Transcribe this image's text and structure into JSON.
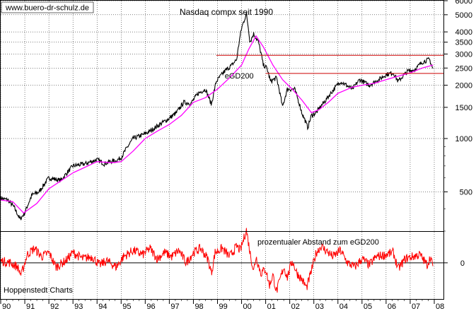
{
  "chart_data": [
    {
      "type": "line",
      "title": "Nasdaq compx seit 1990",
      "watermark": "www.buero-dr-schulz.de",
      "scale": "log",
      "ylim": [
        300,
        6000
      ],
      "y_ticks": [
        500,
        1000,
        1500,
        2000,
        2500,
        3000,
        3500,
        4000,
        5000,
        6000
      ],
      "y_tick_labels": [
        "500",
        "1000",
        "1500",
        "2000",
        "2500",
        "3000",
        "3500",
        "4000",
        "5000",
        "6000"
      ],
      "series": [
        {
          "name": "Nasdaq compx",
          "color": "#000000",
          "x": [
            1990.0,
            1990.3,
            1990.55,
            1990.8,
            1991.0,
            1991.3,
            1991.6,
            1992.0,
            1992.5,
            1993.0,
            1993.5,
            1994.0,
            1994.3,
            1994.5,
            1994.8,
            1995.0,
            1995.5,
            1995.9,
            1996.2,
            1996.6,
            1997.0,
            1997.3,
            1997.6,
            1997.9,
            1998.2,
            1998.5,
            1998.75,
            1998.95,
            1999.3,
            1999.6,
            1999.8,
            2000.0,
            2000.2,
            2000.35,
            2000.5,
            2000.7,
            2000.9,
            2001.05,
            2001.2,
            2001.45,
            2001.7,
            2001.9,
            2002.2,
            2002.5,
            2002.75,
            2002.9,
            2003.1,
            2003.5,
            2003.9,
            2004.1,
            2004.6,
            2004.9,
            2005.3,
            2005.7,
            2006.0,
            2006.3,
            2006.5,
            2006.9,
            2007.2,
            2007.5,
            2007.8,
            2007.95
          ],
          "values": [
            460,
            450,
            410,
            350,
            380,
            480,
            500,
            600,
            580,
            700,
            720,
            760,
            720,
            740,
            750,
            780,
            1000,
            1050,
            1100,
            1200,
            1300,
            1400,
            1600,
            1580,
            1800,
            1900,
            1550,
            2100,
            2400,
            2600,
            2800,
            4200,
            5050,
            3500,
            3900,
            3500,
            2600,
            2500,
            2100,
            2200,
            1500,
            1900,
            1900,
            1400,
            1150,
            1350,
            1400,
            1650,
            1950,
            2100,
            1900,
            2150,
            2000,
            2150,
            2300,
            2350,
            2100,
            2400,
            2450,
            2700,
            2800,
            2450
          ]
        },
        {
          "name": "eGD200",
          "color": "#ff00ff",
          "x": [
            1990.0,
            1990.5,
            1990.95,
            1991.5,
            1992.0,
            1993.0,
            1994.0,
            1994.6,
            1995.0,
            1995.5,
            1996.0,
            1996.5,
            1997.0,
            1997.5,
            1998.0,
            1998.5,
            1999.0,
            1999.5,
            2000.0,
            2000.3,
            2000.6,
            2000.9,
            2001.3,
            2001.7,
            2002.1,
            2002.5,
            2002.9,
            2003.2,
            2003.6,
            2004.0,
            2004.6,
            2005.0,
            2005.5,
            2006.0,
            2006.5,
            2007.0,
            2007.5,
            2007.95
          ],
          "values": [
            450,
            440,
            380,
            430,
            520,
            640,
            740,
            730,
            740,
            850,
            1000,
            1100,
            1200,
            1350,
            1600,
            1700,
            1900,
            2200,
            2600,
            3200,
            3800,
            3300,
            2600,
            2150,
            1900,
            1650,
            1400,
            1450,
            1600,
            1800,
            1950,
            2000,
            2050,
            2150,
            2250,
            2350,
            2500,
            2600
          ]
        }
      ],
      "annotations": [
        {
          "text": "eGD200",
          "color": "#ff00ff",
          "x": 1999.3,
          "y": 2180
        }
      ],
      "reference_lines": [
        {
          "y": 2950,
          "x_start": 1998.95,
          "color": "#cc0000"
        },
        {
          "y": 2330,
          "x_start": 2001.0,
          "color": "#cc0000"
        }
      ]
    },
    {
      "type": "line",
      "title": "prozentualer Abstand zum eGD200",
      "ylim": [
        -35,
        30
      ],
      "y_ticks": [
        0
      ],
      "y_tick_labels": [
        "0"
      ],
      "series": [
        {
          "name": "prozentualer Abstand zum eGD200",
          "color": "#ff0000",
          "x": [
            1990.0,
            1990.4,
            1990.7,
            1990.85,
            1991.1,
            1991.4,
            1991.7,
            1992.0,
            1992.3,
            1992.7,
            1993.0,
            1993.4,
            1993.8,
            1994.1,
            1994.4,
            1994.8,
            1995.1,
            1995.5,
            1995.9,
            1996.2,
            1996.5,
            1996.8,
            1997.1,
            1997.4,
            1997.7,
            1998.0,
            1998.3,
            1998.6,
            1998.75,
            1998.9,
            1999.2,
            1999.5,
            1999.8,
            1999.95,
            2000.1,
            2000.2,
            2000.35,
            2000.5,
            2000.6,
            2000.8,
            2001.0,
            2001.15,
            2001.3,
            2001.45,
            2001.6,
            2001.75,
            2001.9,
            2002.1,
            2002.3,
            2002.5,
            2002.7,
            2002.85,
            2003.1,
            2003.3,
            2003.5,
            2003.8,
            2004.1,
            2004.4,
            2004.7,
            2005.0,
            2005.3,
            2005.6,
            2006.0,
            2006.3,
            2006.5,
            2006.8,
            2007.1,
            2007.4,
            2007.7,
            2007.85,
            2007.95
          ],
          "values": [
            2,
            0,
            -4,
            -12,
            8,
            14,
            6,
            10,
            -4,
            2,
            10,
            4,
            6,
            -2,
            2,
            -4,
            6,
            12,
            8,
            14,
            4,
            10,
            6,
            12,
            0,
            10,
            14,
            4,
            -10,
            10,
            14,
            6,
            16,
            12,
            24,
            32,
            10,
            -8,
            6,
            -10,
            -6,
            -22,
            -12,
            -28,
            -16,
            -4,
            -14,
            2,
            -10,
            -16,
            -24,
            -12,
            10,
            16,
            12,
            6,
            12,
            0,
            -4,
            4,
            -2,
            6,
            8,
            10,
            -6,
            4,
            6,
            8,
            -2,
            6,
            -6
          ]
        }
      ]
    }
  ],
  "x_axis": {
    "tick_labels": [
      "90",
      "91",
      "92",
      "93",
      "94",
      "95",
      "96",
      "97",
      "98",
      "99",
      "00",
      "01",
      "02",
      "03",
      "04",
      "05",
      "06",
      "07",
      "08"
    ],
    "tick_years": [
      1990,
      1991,
      1992,
      1993,
      1994,
      1995,
      1996,
      1997,
      1998,
      1999,
      2000,
      2001,
      2002,
      2003,
      2004,
      2005,
      2006,
      2007,
      2008
    ]
  },
  "source_label": "Hoppenstedt Charts"
}
